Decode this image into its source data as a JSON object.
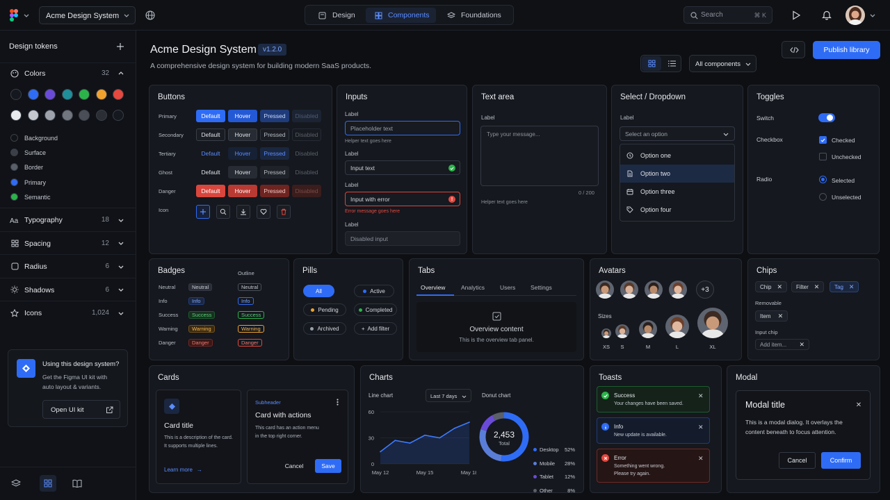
{
  "topbar": {
    "project": "Acme Design System",
    "tabs": [
      {
        "label": "Design"
      },
      {
        "label": "Components"
      },
      {
        "label": "Foundations"
      }
    ],
    "search": {
      "placeholder": "Search",
      "shortcut": "⌘ K"
    }
  },
  "sidebar": {
    "title": "Design tokens",
    "colors": {
      "label": "Colors",
      "count": "32"
    },
    "swatches_row1": [
      "#15181e",
      "#2f6cf6",
      "#6a4bd8",
      "#1f8f9a",
      "#2bb34a",
      "#f0a22e",
      "#e5483f"
    ],
    "swatches_row2": [
      "#e8eaee",
      "#c5c8cf",
      "#9da2ab",
      "#71767f",
      "#4a4e57",
      "#2b2e35",
      "#15181e"
    ],
    "color_groups": [
      {
        "label": "Background",
        "color": "#121418"
      },
      {
        "label": "Surface",
        "color": "#3a3f48"
      },
      {
        "label": "Border",
        "color": "#5a5f69"
      },
      {
        "label": "Primary",
        "color": "#2f6cf6"
      },
      {
        "label": "Semantic",
        "color": "#2bb34a"
      }
    ],
    "sections": [
      {
        "label": "Typography",
        "count": "18",
        "icon": "text-icon"
      },
      {
        "label": "Spacing",
        "count": "12",
        "icon": "grid-icon"
      },
      {
        "label": "Radius",
        "count": "6",
        "icon": "square-icon"
      },
      {
        "label": "Shadows",
        "count": "6",
        "icon": "sun-icon"
      },
      {
        "label": "Icons",
        "count": "1,024",
        "icon": "star-icon"
      }
    ],
    "promo": {
      "title": "Using this design system?",
      "body_line1": "Get the Figma UI kit with",
      "body_line2": "auto layout & variants.",
      "button": "Open UI kit"
    }
  },
  "header": {
    "title": "Acme Design System",
    "version": "v1.2.0",
    "subtitle": "A comprehensive design system for building modern SaaS products.",
    "filter": "All components",
    "publish": "Publish library"
  },
  "buttons": {
    "title": "Buttons",
    "rows": [
      "Primary",
      "Secondary",
      "Tertiary",
      "Ghost",
      "Danger",
      "Icon"
    ],
    "states": [
      "Default",
      "Hover",
      "Pressed",
      "Disabled"
    ]
  },
  "inputs": {
    "title": "Inputs",
    "label": "Label",
    "placeholder": "Placeholder text",
    "helper": "Helper text goes here",
    "value": "Input text",
    "error_value": "Input with error",
    "error_msg": "Error message goes here",
    "disabled": "Disabled input"
  },
  "textarea": {
    "title": "Text area",
    "label": "Label",
    "placeholder": "Type your message...",
    "count": "0 / 200",
    "helper": "Helper text goes here"
  },
  "select": {
    "title": "Select / Dropdown",
    "label": "Label",
    "placeholder": "Select an option",
    "options": [
      "Option one",
      "Option two",
      "Option three",
      "Option four"
    ]
  },
  "toggles": {
    "title": "Toggles",
    "switch": "Switch",
    "checkbox": "Checkbox",
    "checked": "Checked",
    "unchecked": "Unchecked",
    "radio": "Radio",
    "selected": "Selected",
    "unselected": "Unselected"
  },
  "badges": {
    "title": "Badges",
    "outline": "Outline",
    "rows": [
      "Neutral",
      "Info",
      "Success",
      "Warning",
      "Danger"
    ]
  },
  "pills": {
    "title": "Pills",
    "all": "All",
    "active": "Active",
    "pending": "Pending",
    "completed": "Completed",
    "archived": "Archived",
    "add_filter": "Add filter"
  },
  "tabs": {
    "title": "Tabs",
    "items": [
      "Overview",
      "Analytics",
      "Users",
      "Settings"
    ],
    "content_title": "Overview content",
    "content_body": "This is the overview tab panel."
  },
  "avatars": {
    "title": "Avatars",
    "more": "+3",
    "sizes_label": "Sizes",
    "sizes": [
      "XS",
      "S",
      "M",
      "L",
      "XL"
    ]
  },
  "chips": {
    "title": "Chips",
    "items": [
      "Chip",
      "Filter",
      "Tag"
    ],
    "removable": "Removable",
    "item": "Item",
    "input_label": "Input chip",
    "input_placeholder": "Add item..."
  },
  "cards": {
    "title": "Cards",
    "card1_title": "Card title",
    "card1_body1": "This is a description of the card.",
    "card1_body2": "It supports multiple lines.",
    "card1_link": "Learn more",
    "card2_sub": "Subheader",
    "card2_title": "Card with actions",
    "card2_body1": "This card has an action menu",
    "card2_body2": "in the top right corner.",
    "cancel": "Cancel",
    "save": "Save"
  },
  "charts": {
    "title": "Charts",
    "line_title": "Line chart",
    "range": "Last 7 days",
    "donut_title": "Donut chart",
    "donut_total": "2,453",
    "donut_total_label": "Total"
  },
  "chart_data": [
    {
      "type": "line",
      "title": "Line chart",
      "x": [
        "May 12",
        "May 13",
        "May 14",
        "May 15",
        "May 16",
        "May 17",
        "May 18"
      ],
      "y_ticks": [
        "0",
        "30",
        "60"
      ],
      "ylim": [
        0,
        60
      ],
      "values": [
        14,
        27,
        24,
        33,
        30,
        41,
        48
      ],
      "xtick_labels": [
        "May 12",
        "May 15",
        "May 18"
      ],
      "color": "#3d7bff"
    },
    {
      "type": "pie",
      "title": "Donut chart",
      "labels": [
        "Desktop",
        "Mobile",
        "Tablet",
        "Other"
      ],
      "values": [
        52,
        28,
        12,
        8
      ],
      "value_labels": [
        "52%",
        "28%",
        "12%",
        "8%"
      ],
      "colors": [
        "#2f6cf6",
        "#5a7dd8",
        "#6a4bd8",
        "#5a5f69"
      ]
    }
  ],
  "toasts": {
    "title": "Toasts",
    "items": [
      {
        "title": "Success",
        "body": "Your changes have been saved.",
        "color": "#2bb34a"
      },
      {
        "title": "Info",
        "body": "New update is available.",
        "color": "#2f6cf6"
      },
      {
        "title": "Error",
        "body": "Something went wrong.",
        "body2": "Please try again.",
        "color": "#e5483f"
      }
    ]
  },
  "modal": {
    "title": "Modal",
    "dialog_title": "Modal title",
    "body1": "This is a modal dialog. It overlays the",
    "body2": "content beneath to focus attention.",
    "cancel": "Cancel",
    "confirm": "Confirm"
  }
}
